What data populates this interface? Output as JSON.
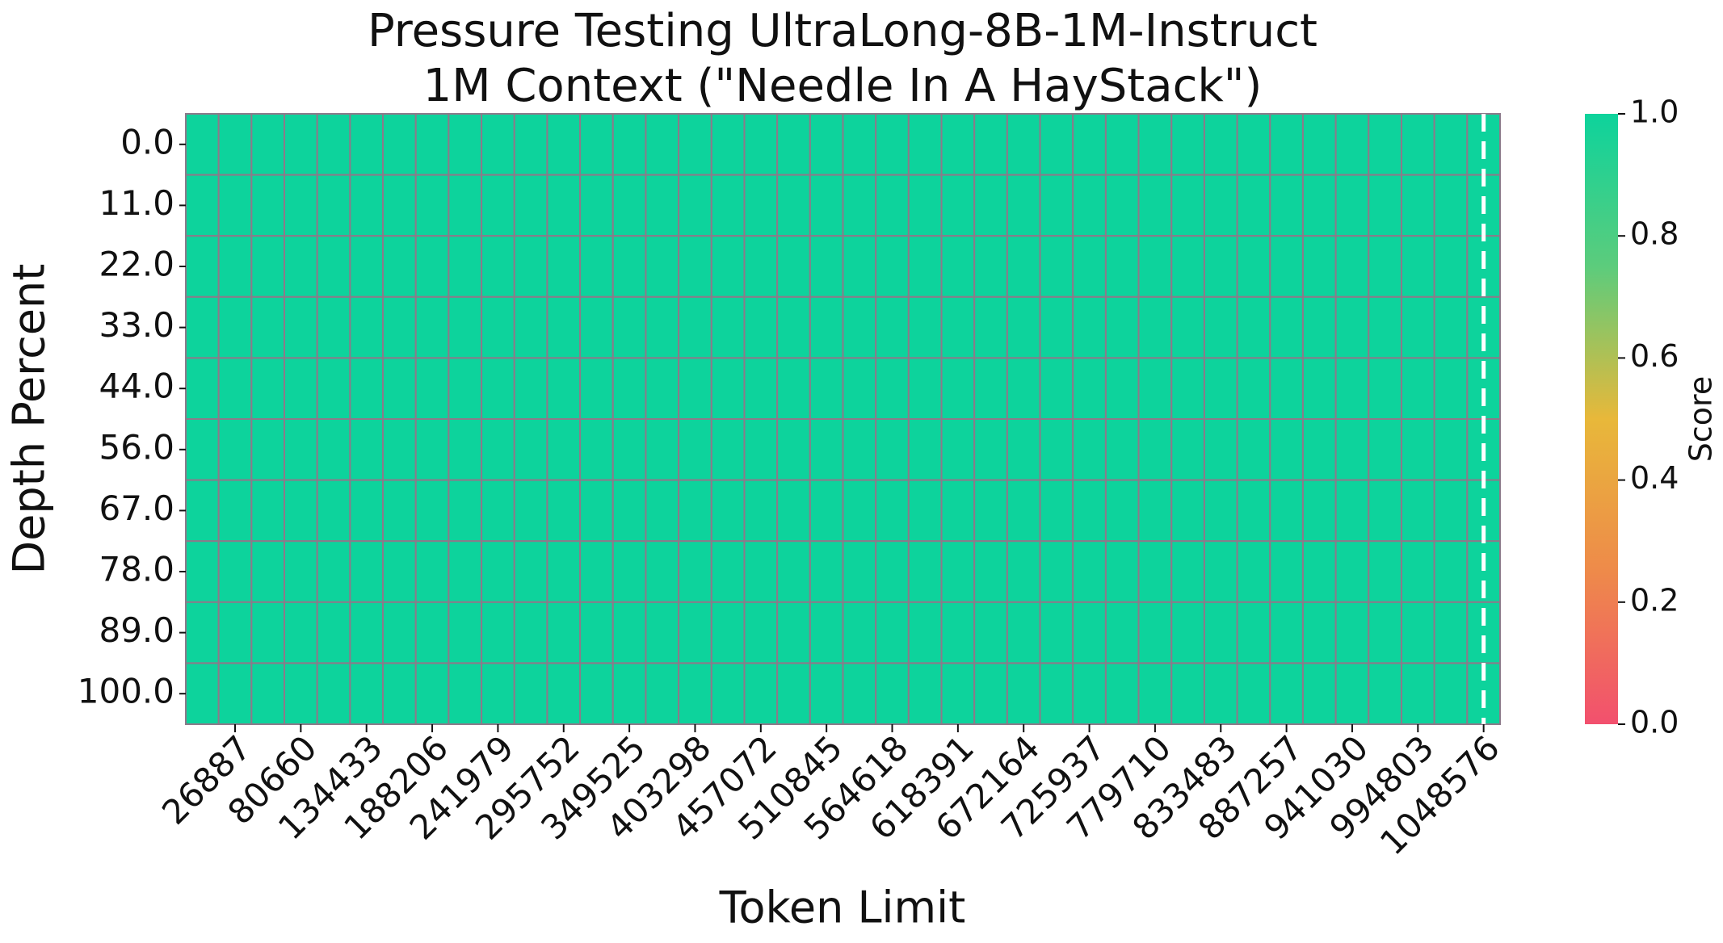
{
  "chart_data": {
    "type": "heatmap",
    "title": "Pressure Testing UltraLong-8B-1M-Instruct",
    "subtitle": "1M Context (\"Needle In A HayStack\")",
    "x_label": "Token Limit",
    "y_label": "Depth Percent",
    "colorbar_label": "Score",
    "categories": [
      null,
      "26887",
      null,
      "80660",
      null,
      "134433",
      null,
      "188206",
      null,
      "241979",
      null,
      "295752",
      null,
      "349525",
      null,
      "403298",
      null,
      "457072",
      null,
      "510845",
      null,
      "564618",
      null,
      "618391",
      null,
      "672164",
      null,
      "725937",
      null,
      "779710",
      null,
      "833483",
      null,
      "887257",
      null,
      "941030",
      null,
      "994803",
      null,
      "1048576"
    ],
    "rows": [
      "0.0",
      "11.0",
      "22.0",
      "33.0",
      "44.0",
      "56.0",
      "67.0",
      "78.0",
      "89.0",
      "100.0"
    ],
    "values": [
      [
        1,
        1,
        1,
        1,
        1,
        1,
        1,
        1,
        1,
        1,
        1,
        1,
        1,
        1,
        1,
        1,
        1,
        1,
        1,
        1,
        1,
        1,
        1,
        1,
        1,
        1,
        1,
        1,
        1,
        1,
        1,
        1,
        1,
        1,
        1,
        1,
        1,
        1,
        1,
        1
      ],
      [
        1,
        1,
        1,
        1,
        1,
        1,
        1,
        1,
        1,
        1,
        1,
        1,
        1,
        1,
        1,
        1,
        1,
        1,
        1,
        1,
        1,
        1,
        1,
        1,
        1,
        1,
        1,
        1,
        1,
        1,
        1,
        1,
        1,
        1,
        1,
        1,
        1,
        1,
        1,
        1
      ],
      [
        1,
        1,
        1,
        1,
        1,
        1,
        1,
        1,
        1,
        1,
        1,
        1,
        1,
        1,
        1,
        1,
        1,
        1,
        1,
        1,
        1,
        1,
        1,
        1,
        1,
        1,
        1,
        1,
        1,
        1,
        1,
        1,
        1,
        1,
        1,
        1,
        1,
        1,
        1,
        1
      ],
      [
        1,
        1,
        1,
        1,
        1,
        1,
        1,
        1,
        1,
        1,
        1,
        1,
        1,
        1,
        1,
        1,
        1,
        1,
        1,
        1,
        1,
        1,
        1,
        1,
        1,
        1,
        1,
        1,
        1,
        1,
        1,
        1,
        1,
        1,
        1,
        1,
        1,
        1,
        1,
        1
      ],
      [
        1,
        1,
        1,
        1,
        1,
        1,
        1,
        1,
        1,
        1,
        1,
        1,
        1,
        1,
        1,
        1,
        1,
        1,
        1,
        1,
        1,
        1,
        1,
        1,
        1,
        1,
        1,
        1,
        1,
        1,
        1,
        1,
        1,
        1,
        1,
        1,
        1,
        1,
        1,
        1
      ],
      [
        1,
        1,
        1,
        1,
        1,
        1,
        1,
        1,
        1,
        1,
        1,
        1,
        1,
        1,
        1,
        1,
        1,
        1,
        1,
        1,
        1,
        1,
        1,
        1,
        1,
        1,
        1,
        1,
        1,
        1,
        1,
        1,
        1,
        1,
        1,
        1,
        1,
        1,
        1,
        1
      ],
      [
        1,
        1,
        1,
        1,
        1,
        1,
        1,
        1,
        1,
        1,
        1,
        1,
        1,
        1,
        1,
        1,
        1,
        1,
        1,
        1,
        1,
        1,
        1,
        1,
        1,
        1,
        1,
        1,
        1,
        1,
        1,
        1,
        1,
        1,
        1,
        1,
        1,
        1,
        1,
        1
      ],
      [
        1,
        1,
        1,
        1,
        1,
        1,
        1,
        1,
        1,
        1,
        1,
        1,
        1,
        1,
        1,
        1,
        1,
        1,
        1,
        1,
        1,
        1,
        1,
        1,
        1,
        1,
        1,
        1,
        1,
        1,
        1,
        1,
        1,
        1,
        1,
        1,
        1,
        1,
        1,
        1
      ],
      [
        1,
        1,
        1,
        1,
        1,
        1,
        1,
        1,
        1,
        1,
        1,
        1,
        1,
        1,
        1,
        1,
        1,
        1,
        1,
        1,
        1,
        1,
        1,
        1,
        1,
        1,
        1,
        1,
        1,
        1,
        1,
        1,
        1,
        1,
        1,
        1,
        1,
        1,
        1,
        1
      ],
      [
        1,
        1,
        1,
        1,
        1,
        1,
        1,
        1,
        1,
        1,
        1,
        1,
        1,
        1,
        1,
        1,
        1,
        1,
        1,
        1,
        1,
        1,
        1,
        1,
        1,
        1,
        1,
        1,
        1,
        1,
        1,
        1,
        1,
        1,
        1,
        1,
        1,
        1,
        1,
        1
      ]
    ],
    "colors": [
      "#f2506e",
      "#ee8a4a",
      "#e8b83a",
      "#5ccc7c",
      "#0dd39c"
    ],
    "clim": [
      0,
      1
    ],
    "cticks": [
      {
        "value": 0,
        "label": "0.0"
      },
      {
        "value": 0.2,
        "label": "0.2"
      },
      {
        "value": 0.4,
        "label": "0.4"
      },
      {
        "value": 0.6,
        "label": "0.6"
      },
      {
        "value": 0.8,
        "label": "0.8"
      },
      {
        "value": 1,
        "label": "1.0"
      }
    ],
    "cell_border_color": "#8c7a8a"
  }
}
